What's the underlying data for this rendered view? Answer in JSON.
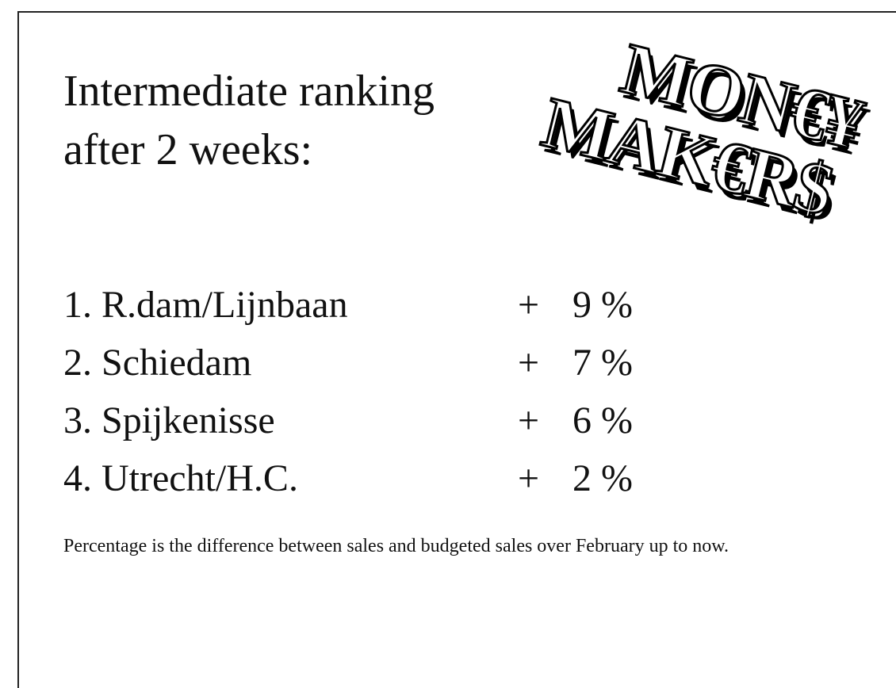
{
  "title": {
    "lines": [
      "Intermediate ranking",
      "after 2 weeks:"
    ]
  },
  "logo": {
    "lines": [
      "MON€¥",
      "MAK€R$"
    ]
  },
  "ranking": {
    "rows": [
      {
        "label": "1. R.dam/Lijnbaan",
        "sign": "+",
        "value": "9 %"
      },
      {
        "label": "2. Schiedam",
        "sign": "+",
        "value": "7 %"
      },
      {
        "label": "3. Spijkenisse",
        "sign": "+",
        "value": "6 %"
      },
      {
        "label": "4. Utrecht/H.C.",
        "sign": "+",
        "value": "2 %"
      }
    ]
  },
  "footnote": "Percentage is the difference between sales and budgeted sales over February up to now."
}
